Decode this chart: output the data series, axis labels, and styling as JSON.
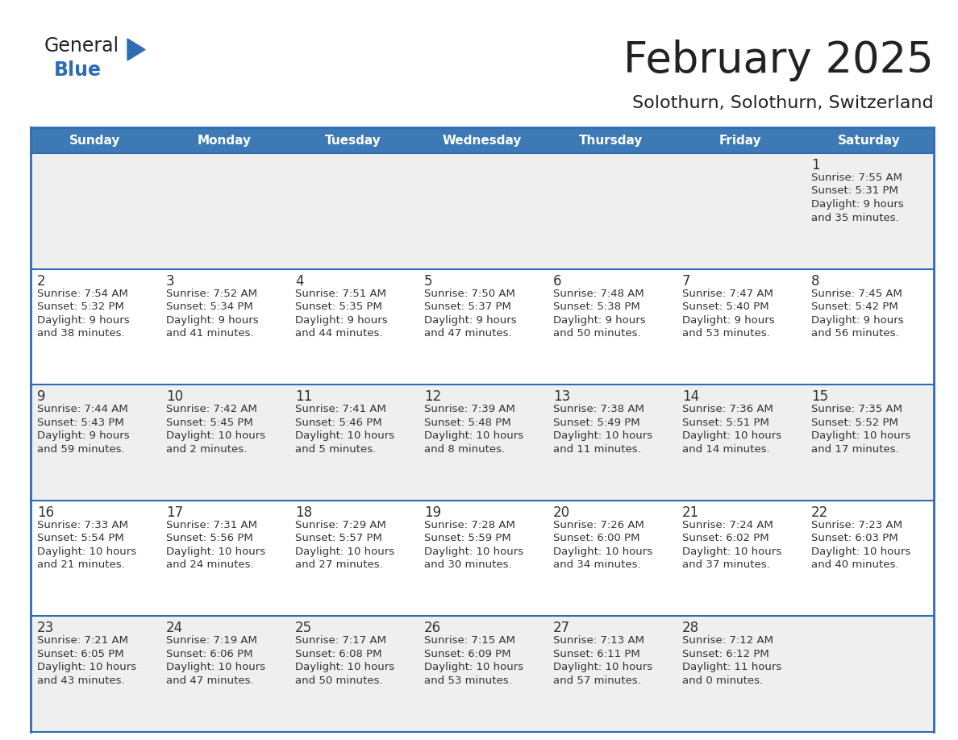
{
  "title": "February 2025",
  "subtitle": "Solothurn, Solothurn, Switzerland",
  "header_bg": "#3d7ab5",
  "header_text": "#ffffff",
  "cell_bg_odd": "#efefef",
  "cell_bg_even": "#ffffff",
  "grid_line_color": "#2e6db4",
  "day_names": [
    "Sunday",
    "Monday",
    "Tuesday",
    "Wednesday",
    "Thursday",
    "Friday",
    "Saturday"
  ],
  "days_data": [
    {
      "day": 1,
      "col": 6,
      "row": 0,
      "sunrise": "7:55 AM",
      "sunset": "5:31 PM",
      "daylight": "9 hours and 35 minutes."
    },
    {
      "day": 2,
      "col": 0,
      "row": 1,
      "sunrise": "7:54 AM",
      "sunset": "5:32 PM",
      "daylight": "9 hours and 38 minutes."
    },
    {
      "day": 3,
      "col": 1,
      "row": 1,
      "sunrise": "7:52 AM",
      "sunset": "5:34 PM",
      "daylight": "9 hours and 41 minutes."
    },
    {
      "day": 4,
      "col": 2,
      "row": 1,
      "sunrise": "7:51 AM",
      "sunset": "5:35 PM",
      "daylight": "9 hours and 44 minutes."
    },
    {
      "day": 5,
      "col": 3,
      "row": 1,
      "sunrise": "7:50 AM",
      "sunset": "5:37 PM",
      "daylight": "9 hours and 47 minutes."
    },
    {
      "day": 6,
      "col": 4,
      "row": 1,
      "sunrise": "7:48 AM",
      "sunset": "5:38 PM",
      "daylight": "9 hours and 50 minutes."
    },
    {
      "day": 7,
      "col": 5,
      "row": 1,
      "sunrise": "7:47 AM",
      "sunset": "5:40 PM",
      "daylight": "9 hours and 53 minutes."
    },
    {
      "day": 8,
      "col": 6,
      "row": 1,
      "sunrise": "7:45 AM",
      "sunset": "5:42 PM",
      "daylight": "9 hours and 56 minutes."
    },
    {
      "day": 9,
      "col": 0,
      "row": 2,
      "sunrise": "7:44 AM",
      "sunset": "5:43 PM",
      "daylight": "9 hours and 59 minutes."
    },
    {
      "day": 10,
      "col": 1,
      "row": 2,
      "sunrise": "7:42 AM",
      "sunset": "5:45 PM",
      "daylight": "10 hours and 2 minutes."
    },
    {
      "day": 11,
      "col": 2,
      "row": 2,
      "sunrise": "7:41 AM",
      "sunset": "5:46 PM",
      "daylight": "10 hours and 5 minutes."
    },
    {
      "day": 12,
      "col": 3,
      "row": 2,
      "sunrise": "7:39 AM",
      "sunset": "5:48 PM",
      "daylight": "10 hours and 8 minutes."
    },
    {
      "day": 13,
      "col": 4,
      "row": 2,
      "sunrise": "7:38 AM",
      "sunset": "5:49 PM",
      "daylight": "10 hours and 11 minutes."
    },
    {
      "day": 14,
      "col": 5,
      "row": 2,
      "sunrise": "7:36 AM",
      "sunset": "5:51 PM",
      "daylight": "10 hours and 14 minutes."
    },
    {
      "day": 15,
      "col": 6,
      "row": 2,
      "sunrise": "7:35 AM",
      "sunset": "5:52 PM",
      "daylight": "10 hours and 17 minutes."
    },
    {
      "day": 16,
      "col": 0,
      "row": 3,
      "sunrise": "7:33 AM",
      "sunset": "5:54 PM",
      "daylight": "10 hours and 21 minutes."
    },
    {
      "day": 17,
      "col": 1,
      "row": 3,
      "sunrise": "7:31 AM",
      "sunset": "5:56 PM",
      "daylight": "10 hours and 24 minutes."
    },
    {
      "day": 18,
      "col": 2,
      "row": 3,
      "sunrise": "7:29 AM",
      "sunset": "5:57 PM",
      "daylight": "10 hours and 27 minutes."
    },
    {
      "day": 19,
      "col": 3,
      "row": 3,
      "sunrise": "7:28 AM",
      "sunset": "5:59 PM",
      "daylight": "10 hours and 30 minutes."
    },
    {
      "day": 20,
      "col": 4,
      "row": 3,
      "sunrise": "7:26 AM",
      "sunset": "6:00 PM",
      "daylight": "10 hours and 34 minutes."
    },
    {
      "day": 21,
      "col": 5,
      "row": 3,
      "sunrise": "7:24 AM",
      "sunset": "6:02 PM",
      "daylight": "10 hours and 37 minutes."
    },
    {
      "day": 22,
      "col": 6,
      "row": 3,
      "sunrise": "7:23 AM",
      "sunset": "6:03 PM",
      "daylight": "10 hours and 40 minutes."
    },
    {
      "day": 23,
      "col": 0,
      "row": 4,
      "sunrise": "7:21 AM",
      "sunset": "6:05 PM",
      "daylight": "10 hours and 43 minutes."
    },
    {
      "day": 24,
      "col": 1,
      "row": 4,
      "sunrise": "7:19 AM",
      "sunset": "6:06 PM",
      "daylight": "10 hours and 47 minutes."
    },
    {
      "day": 25,
      "col": 2,
      "row": 4,
      "sunrise": "7:17 AM",
      "sunset": "6:08 PM",
      "daylight": "10 hours and 50 minutes."
    },
    {
      "day": 26,
      "col": 3,
      "row": 4,
      "sunrise": "7:15 AM",
      "sunset": "6:09 PM",
      "daylight": "10 hours and 53 minutes."
    },
    {
      "day": 27,
      "col": 4,
      "row": 4,
      "sunrise": "7:13 AM",
      "sunset": "6:11 PM",
      "daylight": "10 hours and 57 minutes."
    },
    {
      "day": 28,
      "col": 5,
      "row": 4,
      "sunrise": "7:12 AM",
      "sunset": "6:12 PM",
      "daylight": "11 hours and 0 minutes."
    }
  ],
  "num_rows": 5,
  "logo_color_general": "#222222",
  "logo_color_blue": "#2e6db4",
  "logo_triangle_color": "#2e6db4",
  "title_color": "#222222",
  "subtitle_color": "#222222",
  "text_color": "#333333"
}
